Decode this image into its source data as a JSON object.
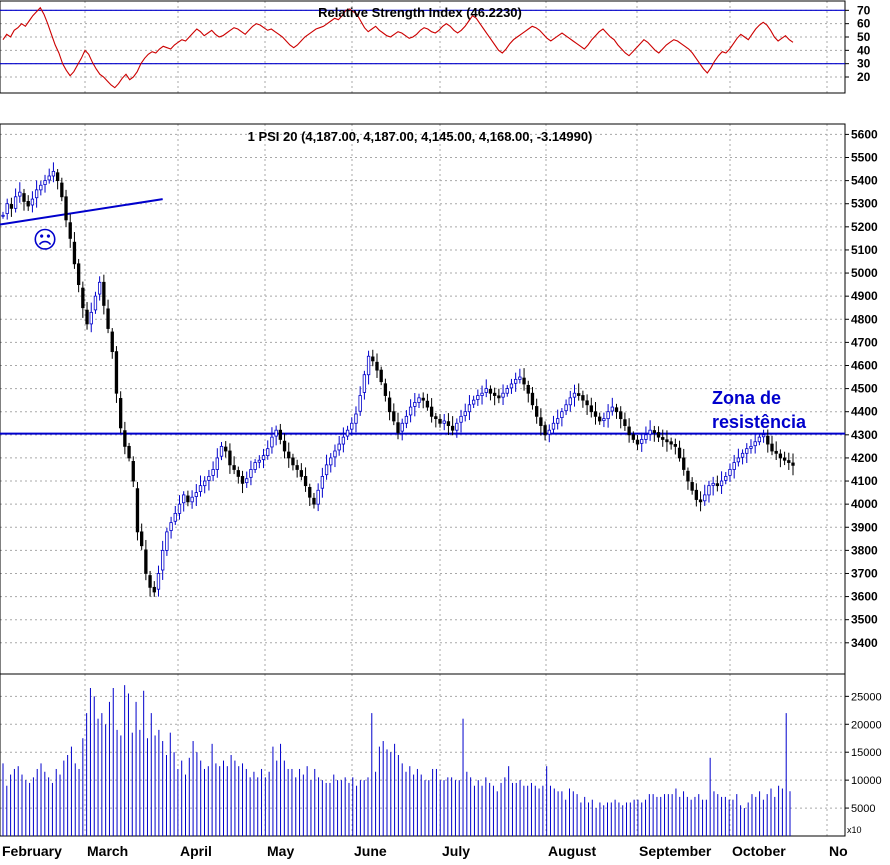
{
  "colors": {
    "background": "#ffffff",
    "panel_border": "#000000",
    "grid": "#a8a8a8",
    "rsi_line": "#cc0000",
    "level_line": "#0000cc",
    "candle_up": "#0000cc",
    "candle_down": "#000000",
    "volume": "#0000cc",
    "annotation": "#0000cc"
  },
  "chart_data": [
    {
      "type": "line",
      "panel": "rsi",
      "title": "Relative Strength Index (46.2230)",
      "yticks": [
        20,
        30,
        40,
        50,
        60,
        70
      ],
      "ylim": [
        8,
        77
      ],
      "reference_levels": [
        70,
        30
      ],
      "grid": true,
      "series": [
        {
          "values": [
            48,
            52,
            50,
            55,
            57,
            60,
            58,
            62,
            66,
            69,
            72,
            67,
            60,
            52,
            44,
            38,
            30,
            25,
            21,
            24,
            29,
            34,
            40,
            37,
            31,
            26,
            22,
            20,
            17,
            14,
            12,
            15,
            19,
            22,
            18,
            20,
            24,
            30,
            34,
            37,
            39,
            38,
            41,
            43,
            42,
            41,
            44,
            46,
            48,
            47,
            50,
            53,
            56,
            54,
            51,
            53,
            55,
            52,
            50,
            51,
            53,
            55,
            57,
            56,
            54,
            52,
            55,
            58,
            60,
            59,
            57,
            55,
            56,
            54,
            52,
            50,
            47,
            44,
            42,
            44,
            47,
            50,
            52,
            54,
            56,
            57,
            58,
            60,
            62,
            64,
            63,
            66,
            70,
            71,
            69,
            67,
            62,
            57,
            54,
            56,
            58,
            55,
            53,
            51,
            50,
            52,
            54,
            53,
            51,
            49,
            50,
            52,
            55,
            57,
            56,
            54,
            53,
            55,
            58,
            60,
            58,
            55,
            53,
            55,
            58,
            62,
            66,
            64,
            60,
            56,
            52,
            48,
            44,
            40,
            38,
            41,
            45,
            48,
            50,
            52,
            54,
            56,
            58,
            57,
            55,
            52,
            49,
            47,
            49,
            51,
            53,
            51,
            49,
            47,
            45,
            43,
            41,
            44,
            48,
            51,
            54,
            56,
            53,
            50,
            48,
            44,
            41,
            38,
            36,
            39,
            42,
            45,
            48,
            46,
            43,
            40,
            38,
            41,
            44,
            46,
            48,
            47,
            45,
            43,
            41,
            38,
            34,
            30,
            26,
            23,
            27,
            32,
            36,
            39,
            38,
            41,
            45,
            49,
            52,
            50,
            48,
            52,
            56,
            59,
            61,
            59,
            55,
            50,
            47,
            49,
            51,
            48,
            46
          ]
        }
      ]
    },
    {
      "type": "candlestick",
      "panel": "price",
      "title": "1 PSI 20 (4,187.00, 4,187.00, 4,145.00, 4,168.00, -3.14990)",
      "yticks": [
        3400,
        3500,
        3600,
        3700,
        3800,
        3900,
        4000,
        4100,
        4200,
        4300,
        4400,
        4500,
        4600,
        4700,
        4800,
        4900,
        5000,
        5100,
        5200,
        5300,
        5400,
        5500,
        5600
      ],
      "ylim": [
        3265,
        5645
      ],
      "xlabels": [
        "February",
        "March",
        "April",
        "May",
        "June",
        "July",
        "August",
        "September",
        "October",
        "No"
      ],
      "grid": true,
      "support_resistance": {
        "value": 4305,
        "label": "Zona de resistência"
      },
      "trendline": {
        "from": {
          "bar": 0,
          "price": 5210
        },
        "to": {
          "bar": 38,
          "price": 5320
        }
      },
      "annotation_symbol": "☹",
      "closes": [
        5250,
        5300,
        5280,
        5330,
        5350,
        5310,
        5290,
        5320,
        5360,
        5380,
        5400,
        5420,
        5440,
        5400,
        5330,
        5230,
        5150,
        5040,
        4950,
        4850,
        4780,
        4830,
        4900,
        4960,
        4860,
        4760,
        4660,
        4480,
        4330,
        4250,
        4200,
        4100,
        3880,
        3820,
        3700,
        3640,
        3620,
        3700,
        3800,
        3880,
        3920,
        3960,
        4000,
        4040,
        4010,
        4030,
        4050,
        4080,
        4100,
        4120,
        4150,
        4200,
        4250,
        4230,
        4170,
        4150,
        4120,
        4090,
        4110,
        4150,
        4180,
        4190,
        4210,
        4240,
        4290,
        4320,
        4280,
        4230,
        4200,
        4170,
        4150,
        4120,
        4080,
        4030,
        4000,
        4060,
        4120,
        4170,
        4200,
        4230,
        4260,
        4290,
        4320,
        4350,
        4390,
        4470,
        4560,
        4640,
        4620,
        4580,
        4530,
        4470,
        4400,
        4360,
        4310,
        4350,
        4380,
        4420,
        4440,
        4460,
        4450,
        4420,
        4380,
        4370,
        4350,
        4360,
        4340,
        4320,
        4350,
        4380,
        4400,
        4430,
        4450,
        4470,
        4480,
        4500,
        4480,
        4470,
        4460,
        4480,
        4500,
        4520,
        4540,
        4550,
        4520,
        4480,
        4430,
        4380,
        4340,
        4300,
        4320,
        4350,
        4370,
        4400,
        4430,
        4460,
        4480,
        4470,
        4450,
        4430,
        4400,
        4380,
        4360,
        4370,
        4400,
        4420,
        4400,
        4370,
        4340,
        4300,
        4280,
        4260,
        4280,
        4300,
        4320,
        4310,
        4290,
        4280,
        4270,
        4260,
        4250,
        4200,
        4150,
        4100,
        4060,
        4020,
        4010,
        4040,
        4080,
        4090,
        4080,
        4100,
        4120,
        4150,
        4180,
        4200,
        4220,
        4240,
        4250,
        4270,
        4290,
        4300,
        4260,
        4230,
        4220,
        4200,
        4190,
        4180,
        4168
      ],
      "bar_data_status": "approximate — individual OHLC values are not printed on the chart"
    },
    {
      "type": "bar",
      "panel": "volume",
      "yticks": [
        5000,
        10000,
        15000,
        20000,
        25000
      ],
      "ylim": [
        0,
        29000
      ],
      "footnote": "x10",
      "values": [
        13000,
        9000,
        11000,
        12000,
        12500,
        11000,
        10000,
        9500,
        10500,
        12000,
        13000,
        11500,
        10500,
        9500,
        12000,
        11000,
        13500,
        14500,
        16000,
        13000,
        12000,
        17500,
        22000,
        26500,
        25000,
        21000,
        22000,
        20000,
        24000,
        26500,
        19000,
        18000,
        27000,
        25500,
        18500,
        24000,
        19000,
        26000,
        17500,
        22000,
        18000,
        19000,
        17000,
        14500,
        18500,
        15000,
        12000,
        13500,
        11000,
        14000,
        17000,
        15000,
        13500,
        12000,
        12500,
        16500,
        13000,
        12500,
        13500,
        12500,
        14500,
        13500,
        12500,
        13000,
        12000,
        10500,
        11500,
        10500,
        12000,
        10500,
        11500,
        16000,
        13500,
        16500,
        13500,
        12000,
        12000,
        10500,
        12000,
        11000,
        12500,
        10000,
        12000,
        10500,
        10000,
        9500,
        9500,
        11000,
        10000,
        10000,
        10500,
        9500,
        10500,
        9000,
        10000,
        10000,
        10500,
        22000,
        11500,
        16000,
        17000,
        15500,
        15000,
        16500,
        14500,
        13000,
        11500,
        12500,
        11000,
        12000,
        11000,
        10000,
        10000,
        12000,
        12000,
        10000,
        10000,
        10500,
        10500,
        10000,
        10000,
        21000,
        11500,
        10500,
        9000,
        10000,
        9000,
        10500,
        9500,
        9000,
        8000,
        9500,
        10500,
        12500,
        9500,
        9500,
        10000,
        9000,
        9000,
        9500,
        9000,
        8500,
        9000,
        12500,
        9000,
        8500,
        8000,
        8000,
        6500,
        8500,
        8000,
        7500,
        6000,
        7000,
        6000,
        6500,
        5000,
        6000,
        5500,
        6000,
        6000,
        6500,
        6000,
        5500,
        6000,
        6000,
        6500,
        6500,
        6000,
        6500,
        7500,
        7500,
        7000,
        7000,
        7500,
        7500,
        7500,
        8500,
        7000,
        8000,
        7000,
        6500,
        7000,
        7500,
        6500,
        6500,
        14000,
        8000,
        7500,
        7000,
        7000,
        6500,
        6500,
        7500,
        5500,
        5000,
        6000,
        7500,
        7000,
        8000,
        6500,
        7500,
        8500,
        7000,
        9000,
        8500,
        22000,
        8000
      ]
    }
  ]
}
